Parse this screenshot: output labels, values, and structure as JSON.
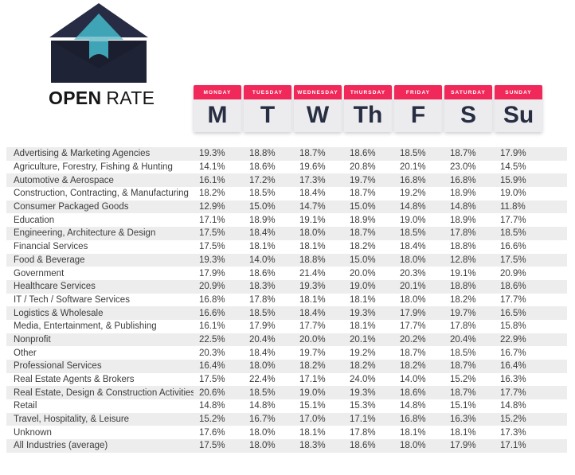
{
  "brand": {
    "title_bold": "OPEN",
    "title_regular": "RATE"
  },
  "colors": {
    "accent_pink": "#F0295A",
    "navy": "#272D42",
    "envelope_body": "#1F2336",
    "envelope_flap": "#272C44",
    "envelope_inner": "#1A1E2E",
    "arrow_teal": "#3EA4B6",
    "stripe_gray": "#EDEDEE",
    "text": "#3c3c3c"
  },
  "days": [
    {
      "name": "MONDAY",
      "abbr": "M"
    },
    {
      "name": "TUESDAY",
      "abbr": "T"
    },
    {
      "name": "WEDNESDAY",
      "abbr": "W"
    },
    {
      "name": "THURSDAY",
      "abbr": "Th"
    },
    {
      "name": "FRIDAY",
      "abbr": "F"
    },
    {
      "name": "SATURDAY",
      "abbr": "S"
    },
    {
      "name": "SUNDAY",
      "abbr": "Su"
    }
  ],
  "chart_data": {
    "type": "table",
    "title": "OPEN RATE",
    "unit": "%",
    "columns": [
      "Monday",
      "Tuesday",
      "Wednesday",
      "Thursday",
      "Friday",
      "Saturday",
      "Sunday"
    ],
    "rows": [
      {
        "industry": "Advertising & Marketing Agencies",
        "values": [
          19.3,
          18.8,
          18.7,
          18.6,
          18.5,
          18.7,
          17.9
        ]
      },
      {
        "industry": "Agriculture, Forestry, Fishing & Hunting",
        "values": [
          14.1,
          18.6,
          19.6,
          20.8,
          20.1,
          23.0,
          14.5
        ]
      },
      {
        "industry": "Automotive & Aerospace",
        "values": [
          16.1,
          17.2,
          17.3,
          19.7,
          16.8,
          16.8,
          15.9
        ]
      },
      {
        "industry": "Construction, Contracting, & Manufacturing",
        "values": [
          18.2,
          18.5,
          18.4,
          18.7,
          19.2,
          18.9,
          19.0
        ]
      },
      {
        "industry": "Consumer Packaged Goods",
        "values": [
          12.9,
          15.0,
          14.7,
          15.0,
          14.8,
          14.8,
          11.8
        ]
      },
      {
        "industry": "Education",
        "values": [
          17.1,
          18.9,
          19.1,
          18.9,
          19.0,
          18.9,
          17.7
        ]
      },
      {
        "industry": "Engineering, Architecture & Design",
        "values": [
          17.5,
          18.4,
          18.0,
          18.7,
          18.5,
          17.8,
          18.5
        ]
      },
      {
        "industry": "Financial Services",
        "values": [
          17.5,
          18.1,
          18.1,
          18.2,
          18.4,
          18.8,
          16.6
        ]
      },
      {
        "industry": "Food & Beverage",
        "values": [
          19.3,
          14.0,
          18.8,
          15.0,
          18.0,
          12.8,
          17.5
        ]
      },
      {
        "industry": "Government",
        "values": [
          17.9,
          18.6,
          21.4,
          20.0,
          20.3,
          19.1,
          20.9
        ]
      },
      {
        "industry": "Healthcare Services",
        "values": [
          20.9,
          18.3,
          19.3,
          19.0,
          20.1,
          18.8,
          18.6
        ]
      },
      {
        "industry": "IT / Tech / Software Services",
        "values": [
          16.8,
          17.8,
          18.1,
          18.1,
          18.0,
          18.2,
          17.7
        ]
      },
      {
        "industry": "Logistics & Wholesale",
        "values": [
          16.6,
          18.5,
          18.4,
          19.3,
          17.9,
          19.7,
          16.5
        ]
      },
      {
        "industry": "Media, Entertainment, & Publishing",
        "values": [
          16.1,
          17.9,
          17.7,
          18.1,
          17.7,
          17.8,
          15.8
        ]
      },
      {
        "industry": "Nonprofit",
        "values": [
          22.5,
          20.4,
          20.0,
          20.1,
          20.2,
          20.4,
          22.9
        ]
      },
      {
        "industry": "Other",
        "values": [
          20.3,
          18.4,
          19.7,
          19.2,
          18.7,
          18.5,
          16.7
        ]
      },
      {
        "industry": "Professional Services",
        "values": [
          16.4,
          18.0,
          18.2,
          18.2,
          18.2,
          18.7,
          16.4
        ]
      },
      {
        "industry": "Real Estate Agents & Brokers",
        "values": [
          17.5,
          22.4,
          17.1,
          24.0,
          14.0,
          15.2,
          16.3
        ]
      },
      {
        "industry": "Real Estate, Design & Construction Activities",
        "values": [
          20.6,
          18.5,
          19.0,
          19.3,
          18.6,
          18.7,
          17.7
        ]
      },
      {
        "industry": "Retail",
        "values": [
          14.8,
          14.8,
          15.1,
          15.3,
          14.8,
          15.1,
          14.8
        ]
      },
      {
        "industry": "Travel, Hospitality, & Leisure",
        "values": [
          15.2,
          16.7,
          17.0,
          17.1,
          16.8,
          16.3,
          15.2
        ]
      },
      {
        "industry": "Unknown",
        "values": [
          17.6,
          18.0,
          18.1,
          17.8,
          18.1,
          18.1,
          17.3
        ]
      },
      {
        "industry": "All Industries (average)",
        "values": [
          17.5,
          18.0,
          18.3,
          18.6,
          18.0,
          17.9,
          17.1
        ]
      }
    ]
  }
}
